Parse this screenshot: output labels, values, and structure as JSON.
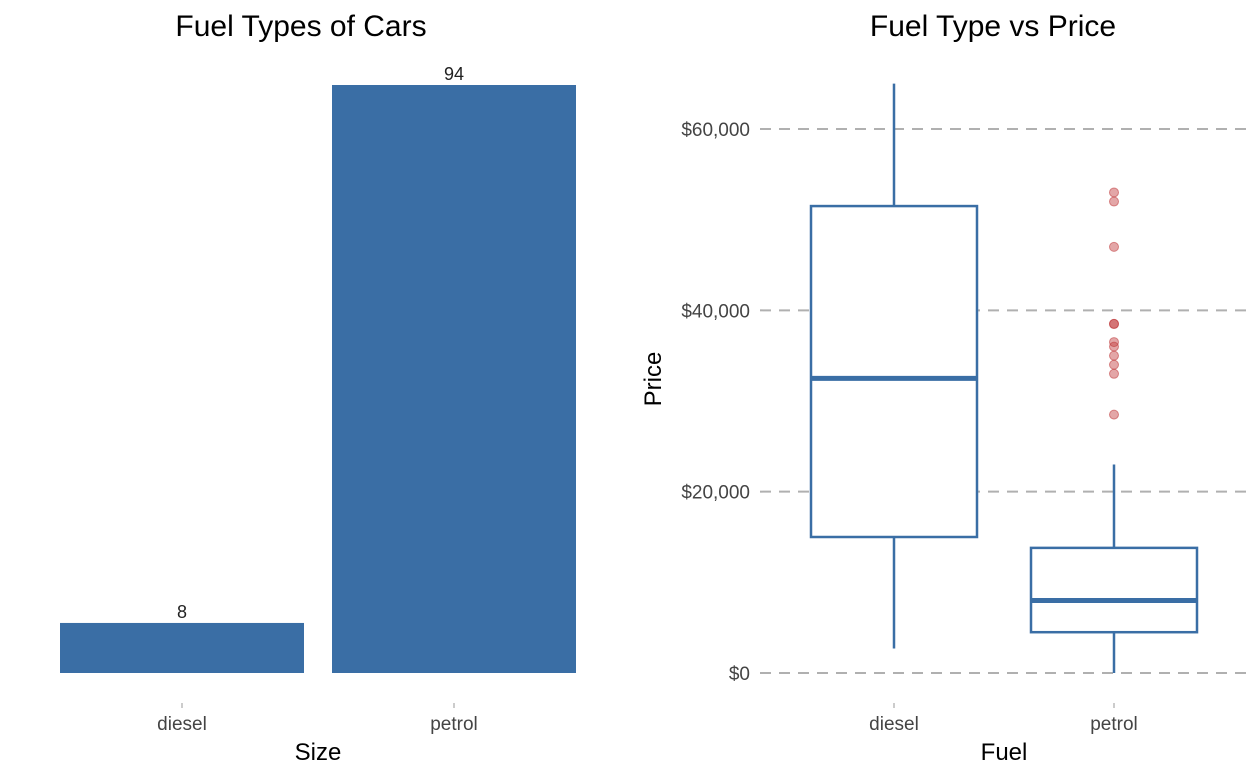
{
  "chart_data": [
    {
      "type": "bar",
      "title": "Fuel Types of Cars",
      "xlabel": "Size",
      "ylabel": "",
      "categories": [
        "diesel",
        "petrol"
      ],
      "values": [
        8,
        94
      ],
      "data_labels": [
        "8",
        "94"
      ],
      "ylim": [
        0,
        94
      ],
      "grid": false,
      "bar_color": "#3a6ea5"
    },
    {
      "type": "box",
      "title": "Fuel Type vs Price",
      "xlabel": "Fuel",
      "ylabel": "Price",
      "categories": [
        "diesel",
        "petrol"
      ],
      "boxes": [
        {
          "category": "diesel",
          "whisker_low": 2700,
          "q1": 15000,
          "median": 32500,
          "q3": 51500,
          "whisker_high": 65000,
          "outliers": []
        },
        {
          "category": "petrol",
          "whisker_low": 0,
          "q1": 4500,
          "median": 8000,
          "q3": 13800,
          "whisker_high": 23000,
          "outliers": [
            28500,
            33000,
            34000,
            35000,
            36000,
            36500,
            38500,
            38500,
            47000,
            52000,
            53000
          ]
        }
      ],
      "yticks": [
        0,
        20000,
        40000,
        60000
      ],
      "ytick_labels": [
        "$0",
        "$20,000",
        "$40,000",
        "$60,000"
      ],
      "ylim": [
        0,
        65000
      ],
      "grid": "horizontal-dashed",
      "box_color": "#3a6ea5",
      "outlier_color": "#c0393b",
      "grid_color": "#b0b0b0"
    }
  ]
}
